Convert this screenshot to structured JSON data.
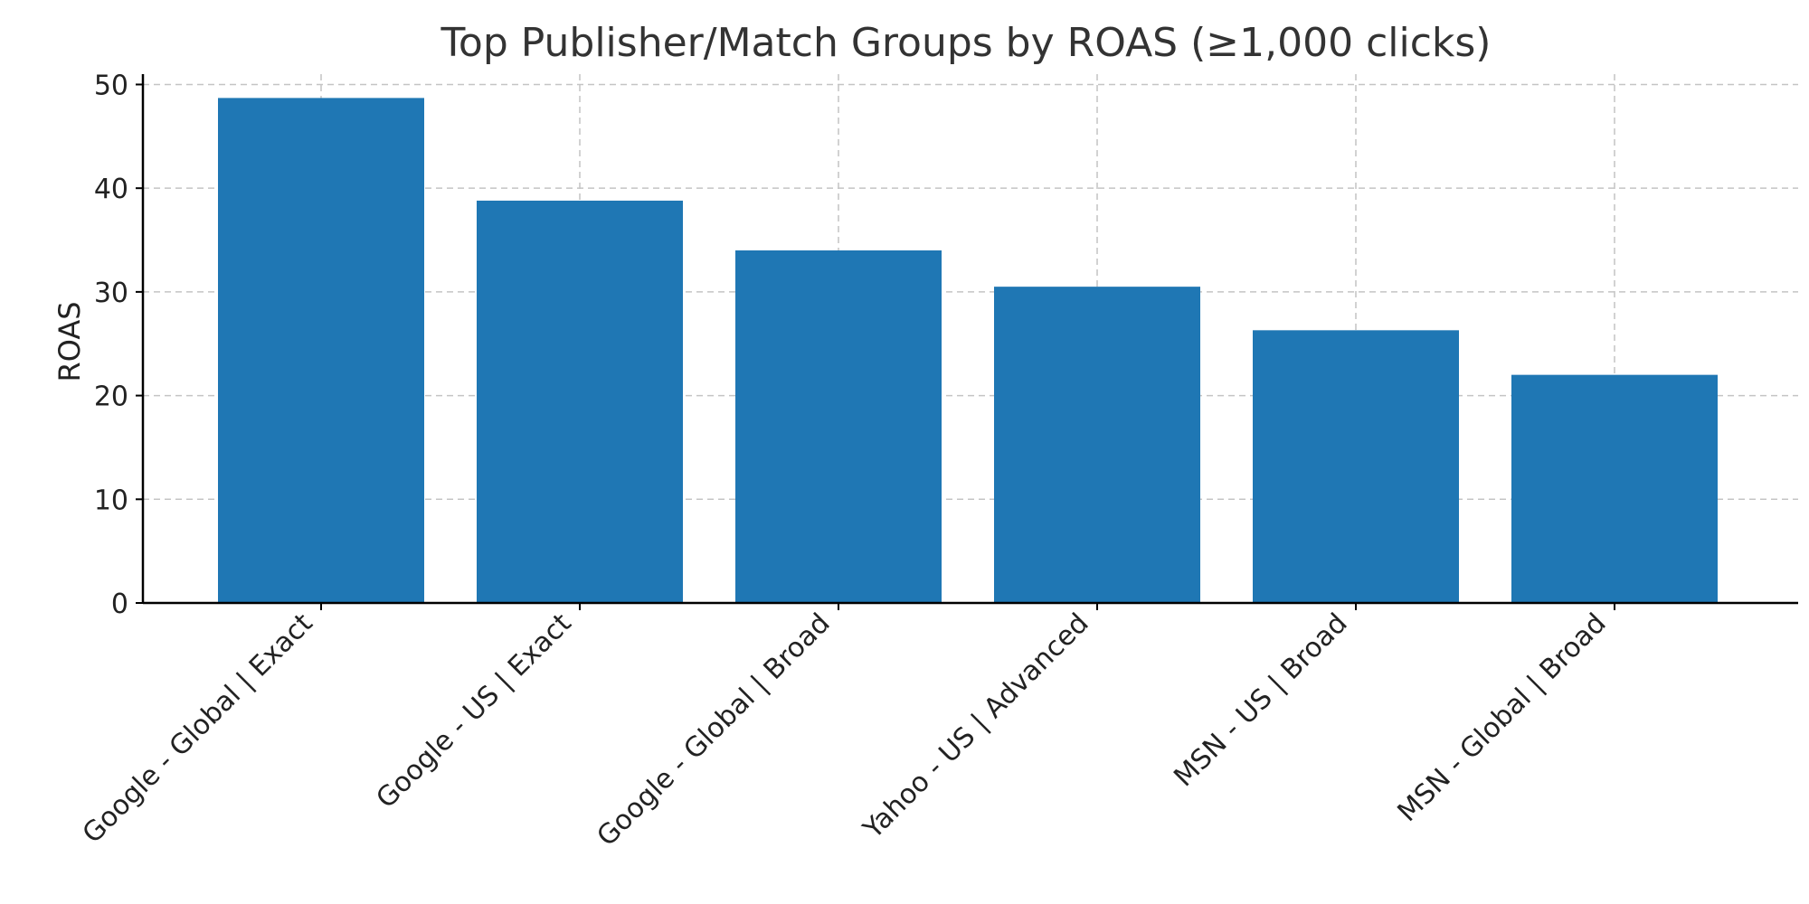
{
  "chart_data": {
    "type": "bar",
    "title": "Top Publisher/Match Groups by ROAS (≥1,000 clicks)",
    "xlabel": "",
    "ylabel": "ROAS",
    "categories": [
      "Google - Global | Exact",
      "Google - US | Exact",
      "Google - Global | Broad",
      "Yahoo - US | Advanced",
      "MSN - US | Broad",
      "MSN - Global | Broad"
    ],
    "values": [
      48.7,
      38.8,
      34.0,
      30.5,
      26.3,
      22.0
    ],
    "ylim": [
      0,
      51
    ],
    "yticks": [
      0,
      10,
      20,
      30,
      40,
      50
    ],
    "grid": true,
    "bar_color": "#1f77b4"
  }
}
